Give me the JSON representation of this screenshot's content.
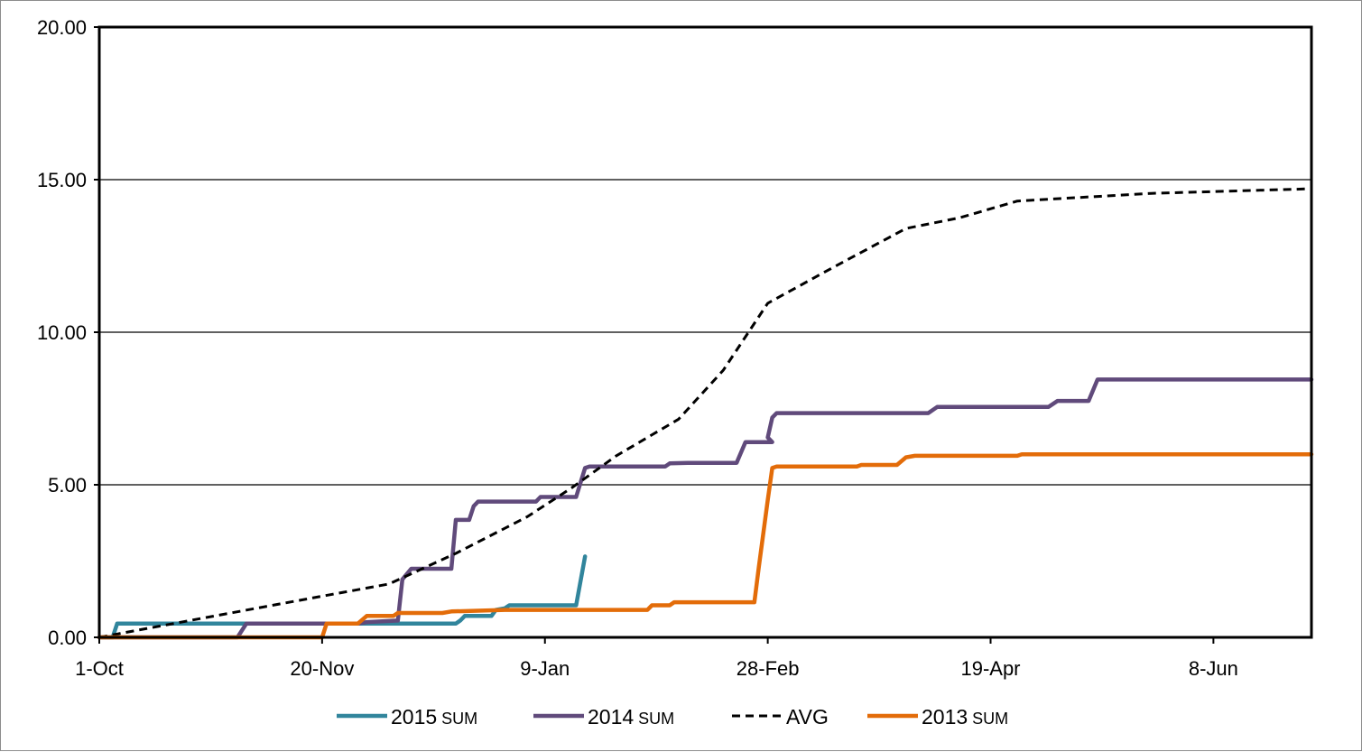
{
  "chart_data": {
    "type": "line",
    "title": "",
    "xlabel": "",
    "ylabel": "",
    "x_range": [
      "2000-10-01",
      "2001-06-30"
    ],
    "ylim": [
      0,
      20
    ],
    "grid": "horizontal",
    "legend_position": "bottom",
    "x_ticks": [
      {
        "date": "2000-10-01",
        "label": "1-Oct"
      },
      {
        "date": "2000-11-20",
        "label": "20-Nov"
      },
      {
        "date": "2001-01-09",
        "label": "9-Jan"
      },
      {
        "date": "2001-02-28",
        "label": "28-Feb"
      },
      {
        "date": "2001-04-19",
        "label": "19-Apr"
      },
      {
        "date": "2001-06-08",
        "label": "8-Jun"
      }
    ],
    "y_ticks": [
      {
        "value": 0,
        "label": "0.00"
      },
      {
        "value": 5,
        "label": "5.00"
      },
      {
        "value": 10,
        "label": "10.00"
      },
      {
        "value": 15,
        "label": "15.00"
      },
      {
        "value": 20,
        "label": "20.00"
      }
    ],
    "series": [
      {
        "name": "2015",
        "name_suffix": "SUM",
        "color": "#31859c",
        "dash": "solid",
        "points": [
          [
            "2000-10-01",
            0.0
          ],
          [
            "2000-10-04",
            0.0
          ],
          [
            "2000-10-05",
            0.45
          ],
          [
            "2000-12-20",
            0.45
          ],
          [
            "2000-12-21",
            0.55
          ],
          [
            "2000-12-22",
            0.7
          ],
          [
            "2000-12-28",
            0.7
          ],
          [
            "2000-12-29",
            0.9
          ],
          [
            "2000-12-31",
            0.95
          ],
          [
            "2001-01-01",
            1.05
          ],
          [
            "2001-01-16",
            1.05
          ],
          [
            "2001-01-18",
            2.65
          ]
        ]
      },
      {
        "name": "2014",
        "name_suffix": "SUM",
        "color": "#604a7b",
        "dash": "solid",
        "points": [
          [
            "2000-10-01",
            0.0
          ],
          [
            "2000-11-01",
            0.0
          ],
          [
            "2000-11-03",
            0.45
          ],
          [
            "2000-11-28",
            0.45
          ],
          [
            "2000-11-30",
            0.5
          ],
          [
            "2000-12-07",
            0.55
          ],
          [
            "2000-12-08",
            1.9
          ],
          [
            "2000-12-10",
            2.25
          ],
          [
            "2000-12-19",
            2.25
          ],
          [
            "2000-12-20",
            3.85
          ],
          [
            "2000-12-23",
            3.85
          ],
          [
            "2000-12-24",
            4.3
          ],
          [
            "2000-12-25",
            4.45
          ],
          [
            "2001-01-07",
            4.45
          ],
          [
            "2001-01-08",
            4.6
          ],
          [
            "2001-01-16",
            4.6
          ],
          [
            "2001-01-18",
            5.55
          ],
          [
            "2001-01-19",
            5.6
          ],
          [
            "2001-02-05",
            5.6
          ],
          [
            "2001-02-06",
            5.7
          ],
          [
            "2001-02-10",
            5.72
          ],
          [
            "2001-02-21",
            5.72
          ],
          [
            "2001-02-23",
            6.4
          ],
          [
            "2001-02-29",
            6.4
          ],
          [
            "2001-02-28",
            6.55
          ],
          [
            "2001-03-01",
            7.2
          ],
          [
            "2001-03-02",
            7.35
          ],
          [
            "2001-04-05",
            7.35
          ],
          [
            "2001-04-07",
            7.55
          ],
          [
            "2001-05-02",
            7.55
          ],
          [
            "2001-05-04",
            7.75
          ],
          [
            "2001-05-11",
            7.75
          ],
          [
            "2001-05-13",
            8.45
          ],
          [
            "2001-06-30",
            8.45
          ]
        ]
      },
      {
        "name": "AVG",
        "name_suffix": "",
        "color": "#000000",
        "dash": "dashed",
        "points": [
          [
            "2000-10-01",
            0.0
          ],
          [
            "2000-10-25",
            0.65
          ],
          [
            "2000-11-20",
            1.35
          ],
          [
            "2000-12-05",
            1.75
          ],
          [
            "2000-12-20",
            2.75
          ],
          [
            "2001-01-05",
            3.95
          ],
          [
            "2001-01-15",
            4.9
          ],
          [
            "2001-01-25",
            5.95
          ],
          [
            "2001-02-08",
            7.15
          ],
          [
            "2001-02-18",
            8.75
          ],
          [
            "2001-02-28",
            10.95
          ],
          [
            "2001-03-15",
            12.15
          ],
          [
            "2001-03-31",
            13.4
          ],
          [
            "2001-04-12",
            13.75
          ],
          [
            "2001-04-25",
            14.3
          ],
          [
            "2001-05-25",
            14.55
          ],
          [
            "2001-06-30",
            14.7
          ]
        ]
      },
      {
        "name": "2013",
        "name_suffix": "SUM",
        "color": "#e36c09",
        "dash": "solid",
        "points": [
          [
            "2000-10-01",
            0.0
          ],
          [
            "2000-11-20",
            0.0
          ],
          [
            "2000-11-21",
            0.45
          ],
          [
            "2000-11-28",
            0.45
          ],
          [
            "2000-11-30",
            0.7
          ],
          [
            "2000-12-06",
            0.7
          ],
          [
            "2000-12-07",
            0.8
          ],
          [
            "2000-12-17",
            0.8
          ],
          [
            "2000-12-19",
            0.85
          ],
          [
            "2000-12-31",
            0.9
          ],
          [
            "2001-02-01",
            0.9
          ],
          [
            "2001-02-02",
            1.05
          ],
          [
            "2001-02-06",
            1.05
          ],
          [
            "2001-02-07",
            1.15
          ],
          [
            "2001-02-25",
            1.15
          ],
          [
            "2001-02-26",
            2.3
          ],
          [
            "2001-02-28",
            4.5
          ],
          [
            "2001-03-01",
            5.55
          ],
          [
            "2001-03-02",
            5.6
          ],
          [
            "2001-03-20",
            5.6
          ],
          [
            "2001-03-21",
            5.65
          ],
          [
            "2001-03-29",
            5.65
          ],
          [
            "2001-03-31",
            5.9
          ],
          [
            "2001-04-02",
            5.95
          ],
          [
            "2001-04-25",
            5.95
          ],
          [
            "2001-04-26",
            6.0
          ],
          [
            "2001-06-30",
            6.0
          ]
        ]
      }
    ]
  }
}
